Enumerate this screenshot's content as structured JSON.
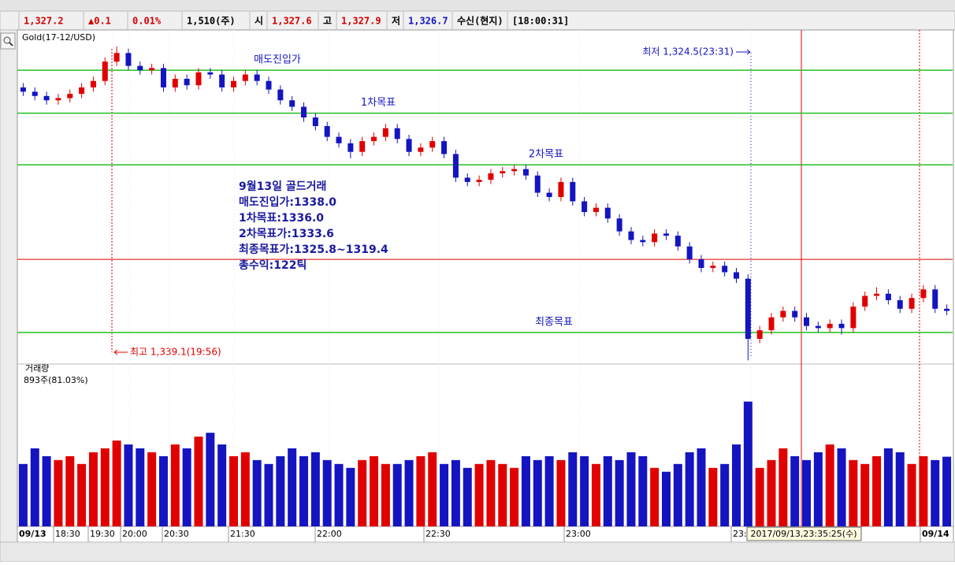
{
  "header": {
    "price": "1,327.2",
    "change": "▲0.1",
    "change_pct": "0.01%",
    "volume": "1,510(주)",
    "open_label": "시",
    "open": "1,327.6",
    "high_label": "고",
    "high": "1,327.9",
    "low_label": "저",
    "low": "1,326.7",
    "feed": "수신(현지)",
    "time": "[18:00:31]"
  },
  "chart_data": {
    "type": "candlestick",
    "title": "Gold(17-12/USD)",
    "open": [
      1337.2,
      1337.0,
      1336.8,
      1336.6,
      1336.7,
      1336.9,
      1337.2,
      1337.5,
      1338.4,
      1338.8,
      1338.2,
      1338.0,
      1338.1,
      1337.2,
      1337.6,
      1337.3,
      1337.9,
      1337.8,
      1337.2,
      1337.5,
      1337.8,
      1337.5,
      1337.1,
      1336.6,
      1336.3,
      1335.8,
      1335.4,
      1334.9,
      1334.6,
      1334.2,
      1334.7,
      1334.9,
      1335.3,
      1334.8,
      1334.2,
      1334.4,
      1334.7,
      1334.1,
      1333.0,
      1332.8,
      1332.9,
      1333.2,
      1333.3,
      1333.4,
      1333.1,
      1332.3,
      1332.1,
      1332.8,
      1331.9,
      1331.4,
      1331.6,
      1331.1,
      1330.5,
      1330.1,
      1330.0,
      1330.4,
      1330.3,
      1329.8,
      1329.2,
      1328.8,
      1328.9,
      1328.6,
      1328.3,
      1325.5,
      1325.9,
      1326.5,
      1326.8,
      1326.5,
      1326.1,
      1326.0,
      1326.2,
      1326.0,
      1327.0,
      1327.5,
      1327.6,
      1327.3,
      1326.9,
      1327.4,
      1327.8,
      1326.9
    ],
    "high": [
      1337.4,
      1337.2,
      1337.0,
      1336.9,
      1337.1,
      1337.4,
      1337.7,
      1338.6,
      1339.1,
      1339.0,
      1338.4,
      1338.3,
      1338.3,
      1337.8,
      1337.8,
      1338.1,
      1338.1,
      1338.0,
      1337.7,
      1338.0,
      1338.0,
      1337.7,
      1337.3,
      1336.8,
      1336.5,
      1336.0,
      1335.6,
      1335.1,
      1334.8,
      1334.9,
      1335.1,
      1335.5,
      1335.5,
      1335.0,
      1334.6,
      1334.9,
      1334.9,
      1334.3,
      1333.2,
      1333.1,
      1333.4,
      1333.5,
      1333.6,
      1333.6,
      1333.3,
      1332.5,
      1333.0,
      1333.0,
      1332.1,
      1331.8,
      1331.8,
      1331.3,
      1330.7,
      1330.3,
      1330.6,
      1330.6,
      1330.5,
      1330.0,
      1329.4,
      1329.1,
      1329.1,
      1328.8,
      1328.5,
      1326.1,
      1326.7,
      1327.0,
      1327.0,
      1326.7,
      1326.3,
      1326.4,
      1326.4,
      1327.2,
      1327.7,
      1327.9,
      1327.8,
      1327.5,
      1327.6,
      1328.0,
      1328.0,
      1327.1
    ],
    "low": [
      1336.8,
      1336.6,
      1336.4,
      1336.4,
      1336.5,
      1336.7,
      1337.0,
      1337.3,
      1338.2,
      1338.0,
      1337.8,
      1337.8,
      1337.0,
      1337.0,
      1337.1,
      1337.1,
      1337.6,
      1337.0,
      1337.0,
      1337.3,
      1337.3,
      1336.9,
      1336.4,
      1336.1,
      1335.6,
      1335.2,
      1334.7,
      1334.4,
      1333.9,
      1334.0,
      1334.5,
      1334.7,
      1334.6,
      1334.0,
      1334.0,
      1334.2,
      1333.9,
      1332.8,
      1332.6,
      1332.6,
      1332.7,
      1333.0,
      1333.1,
      1332.9,
      1332.1,
      1331.9,
      1331.9,
      1331.7,
      1331.2,
      1331.2,
      1330.9,
      1330.3,
      1329.9,
      1329.8,
      1329.8,
      1330.1,
      1329.6,
      1329.0,
      1328.6,
      1328.6,
      1328.4,
      1328.1,
      1324.5,
      1325.3,
      1325.7,
      1326.3,
      1326.3,
      1325.9,
      1325.8,
      1325.8,
      1325.7,
      1325.8,
      1326.8,
      1327.3,
      1327.1,
      1326.7,
      1326.7,
      1327.2,
      1326.7,
      1326.6
    ],
    "close": [
      1337.0,
      1336.8,
      1336.6,
      1336.7,
      1336.9,
      1337.2,
      1337.5,
      1338.4,
      1338.8,
      1338.2,
      1338.0,
      1338.1,
      1337.2,
      1337.6,
      1337.3,
      1337.9,
      1337.8,
      1337.2,
      1337.5,
      1337.8,
      1337.5,
      1337.1,
      1336.6,
      1336.3,
      1335.8,
      1335.4,
      1334.9,
      1334.6,
      1334.2,
      1334.7,
      1334.9,
      1335.3,
      1334.8,
      1334.2,
      1334.4,
      1334.7,
      1334.1,
      1333.0,
      1332.8,
      1332.9,
      1333.2,
      1333.3,
      1333.4,
      1333.1,
      1332.3,
      1332.1,
      1332.8,
      1331.9,
      1331.4,
      1331.6,
      1331.1,
      1330.5,
      1330.1,
      1330.0,
      1330.4,
      1330.3,
      1329.8,
      1329.2,
      1328.8,
      1328.9,
      1328.6,
      1328.3,
      1325.5,
      1325.9,
      1326.5,
      1326.8,
      1326.5,
      1326.1,
      1326.0,
      1326.2,
      1326.0,
      1327.0,
      1327.5,
      1327.6,
      1327.3,
      1326.9,
      1327.4,
      1327.8,
      1326.9,
      1326.8
    ],
    "up_color": "#e00000",
    "down_color": "#1414c0",
    "ylim": [
      1324.4,
      1339.8
    ],
    "levels": [
      {
        "label": "매도진입가",
        "value": 1338.0
      },
      {
        "label": "1차목표",
        "value": 1336.0
      },
      {
        "label": "2차목표",
        "value": 1333.6
      },
      {
        "label": "최종목표",
        "value": 1325.8
      }
    ],
    "level_color": "#22c022",
    "ref_line": 1329.2,
    "annotation": [
      "9월13일 골드거래",
      "매도진입가:1338.0",
      "1차목표:1336.0",
      "2차목표가:1333.6",
      "최종목표가:1325.8~1319.4",
      "총수익:122틱"
    ],
    "high_marker": "최고 1,339.1(19:56)",
    "low_marker": "최저 1,324.5(23:31)",
    "x_labels": [
      "09/13",
      "18:30",
      "19:30",
      "20:00",
      "20:30",
      "21:30",
      "22:00",
      "22:30",
      "23:00",
      "23:",
      "09/14"
    ],
    "cursor_label": "2017/09/13,23:35:25(수)",
    "volume": {
      "title": "거래량",
      "label": "893주(81.03%)",
      "ylim": [
        0,
        2000
      ],
      "values": [
        800,
        1000,
        900,
        850,
        900,
        800,
        950,
        1000,
        1100,
        1050,
        1000,
        950,
        900,
        1050,
        1000,
        1150,
        1200,
        1050,
        900,
        950,
        850,
        800,
        900,
        1000,
        900,
        950,
        850,
        800,
        750,
        850,
        900,
        800,
        800,
        850,
        900,
        950,
        800,
        850,
        750,
        800,
        850,
        800,
        750,
        900,
        850,
        900,
        850,
        950,
        900,
        800,
        900,
        850,
        950,
        900,
        750,
        700,
        800,
        950,
        1000,
        750,
        800,
        1050,
        1600,
        750,
        850,
        1000,
        900,
        850,
        950,
        1050,
        1000,
        850,
        800,
        900,
        1000,
        950,
        800,
        900,
        850,
        893
      ]
    }
  }
}
